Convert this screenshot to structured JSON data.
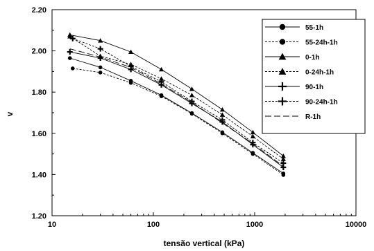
{
  "chart_data": {
    "type": "line",
    "title": "",
    "xlabel": "tensão vertical (kPa)",
    "ylabel": "v",
    "xscale": "log",
    "xlim": [
      10,
      10000
    ],
    "ylim": [
      1.2,
      2.2
    ],
    "xticks": [
      "10",
      "100",
      "1000",
      "10000"
    ],
    "yticks": [
      "1.20",
      "1.40",
      "1.60",
      "1.80",
      "2.00",
      "2.20"
    ],
    "ytick_values": [
      1.2,
      1.4,
      1.6,
      1.8,
      2.0,
      2.2
    ],
    "xtick_values": [
      10,
      100,
      1000,
      10000
    ],
    "grid": false,
    "legend_position": "top-right",
    "series": [
      {
        "name": "55-1h",
        "marker": "circle",
        "line": "solid",
        "x": [
          15,
          30,
          60,
          120,
          240,
          480,
          960,
          1920
        ],
        "y": [
          1.965,
          1.92,
          1.855,
          1.785,
          1.698,
          1.605,
          1.505,
          1.405
        ]
      },
      {
        "name": "55-24h-1h",
        "marker": "circle",
        "line": "dashed",
        "x": [
          16,
          30,
          60,
          120,
          240,
          480,
          960,
          1920
        ],
        "y": [
          1.915,
          1.895,
          1.845,
          1.78,
          1.695,
          1.6,
          1.5,
          1.398
        ]
      },
      {
        "name": "0-1h",
        "marker": "triangle",
        "line": "solid",
        "x": [
          15,
          30,
          60,
          120,
          240,
          480,
          960,
          1920
        ],
        "y": [
          2.078,
          2.05,
          1.995,
          1.91,
          1.815,
          1.715,
          1.605,
          1.49
        ]
      },
      {
        "name": "0-24h-1h",
        "marker": "triangle",
        "line": "dashed",
        "x": [
          15,
          30,
          60,
          120,
          240,
          480,
          960,
          1920
        ],
        "y": [
          2.07,
          1.975,
          1.935,
          1.865,
          1.785,
          1.69,
          1.585,
          1.475
        ]
      },
      {
        "name": "90-1h",
        "marker": "plus",
        "line": "solid",
        "x": [
          15,
          30,
          60,
          120,
          240,
          480,
          960,
          1920
        ],
        "y": [
          1.995,
          1.965,
          1.91,
          1.835,
          1.745,
          1.655,
          1.545,
          1.435
        ]
      },
      {
        "name": "90-24h-1h",
        "marker": "plus",
        "line": "dashed",
        "x": [
          16,
          30,
          60,
          120,
          240,
          480,
          960,
          1920
        ],
        "y": [
          2.06,
          2.01,
          1.925,
          1.85,
          1.755,
          1.665,
          1.555,
          1.455
        ]
      },
      {
        "name": "R-1h",
        "marker": "none",
        "line": "longdash",
        "x": [
          15,
          30,
          60,
          120,
          240,
          480,
          960,
          1920
        ],
        "y": [
          2.01,
          1.97,
          1.92,
          1.84,
          1.75,
          1.65,
          1.55,
          1.44
        ]
      }
    ]
  }
}
